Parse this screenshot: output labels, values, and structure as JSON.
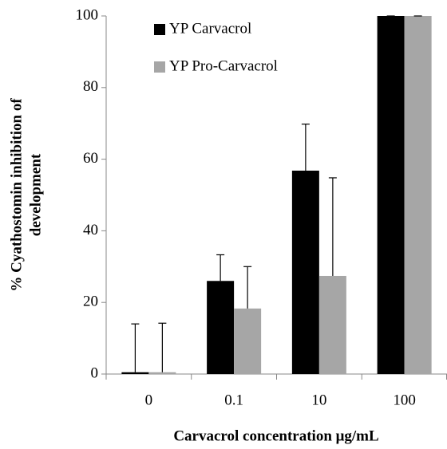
{
  "chart_data": {
    "type": "bar",
    "xlabel": "Carvacrol concentration μg/mL",
    "ylabel": [
      "% Cyathostomin inhibition of",
      "development"
    ],
    "categories": [
      "0",
      "0.1",
      "10",
      "100"
    ],
    "series": [
      {
        "name": "YP Carvacrol",
        "color": "#000000",
        "values": [
          0.5,
          26,
          56.8,
          100
        ],
        "errors": [
          13.5,
          7.3,
          13,
          0
        ]
      },
      {
        "name": "YP Pro-Carvacrol",
        "color": "#a6a6a6",
        "values": [
          0.5,
          18.3,
          27.4,
          100
        ],
        "errors": [
          13.7,
          11.7,
          27.4,
          0
        ]
      }
    ],
    "ylim": [
      0,
      100
    ],
    "yticks": [
      0,
      20,
      40,
      60,
      80,
      100
    ],
    "legend": "top-left",
    "grid": false
  }
}
